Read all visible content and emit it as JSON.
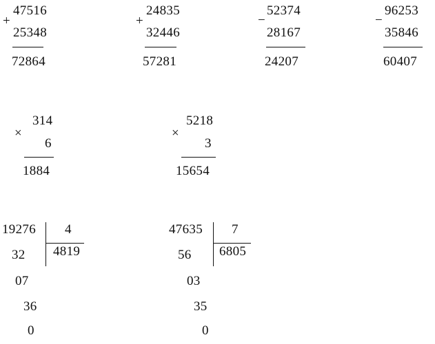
{
  "additions": [
    {
      "operator": "+",
      "top": "47516",
      "bottom": "25348",
      "result": "72864"
    },
    {
      "operator": "+",
      "top": "24835",
      "bottom": "32446",
      "result": "57281"
    }
  ],
  "subtractions": [
    {
      "operator": "−",
      "top": "52374",
      "bottom": "28167",
      "result": "24207"
    },
    {
      "operator": "−",
      "top": "96253",
      "bottom": "35846",
      "result": "60407"
    }
  ],
  "multiplications": [
    {
      "operator": "×",
      "top": "314",
      "bottom": "6",
      "result": "1884"
    },
    {
      "operator": "×",
      "top": "5218",
      "bottom": "3",
      "result": "15654"
    }
  ],
  "divisions": [
    {
      "dividend": "19276",
      "divisor": "4",
      "quotient": "4819",
      "steps": [
        "32",
        "07",
        "36",
        "0"
      ]
    },
    {
      "dividend": "47635",
      "divisor": "7",
      "quotient": "6805",
      "steps": [
        "56",
        "03",
        "35",
        "0"
      ]
    }
  ]
}
